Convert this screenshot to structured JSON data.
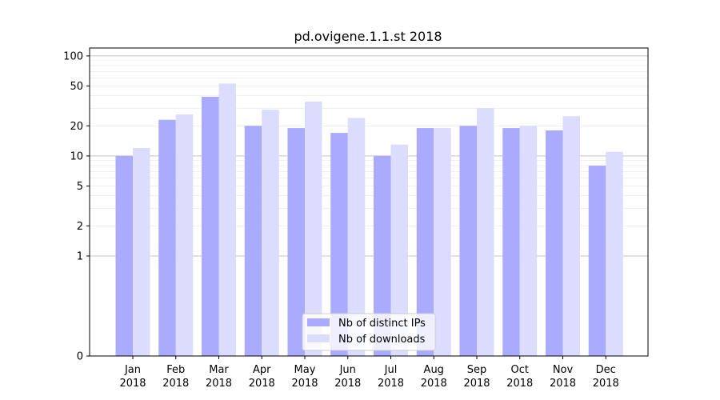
{
  "chart_data": {
    "type": "bar",
    "title": "pd.ovigene.1.1.st 2018",
    "xlabel": "",
    "ylabel": "",
    "y_scale": "symlog",
    "ylim": [
      0,
      120
    ],
    "y_ticks": [
      0,
      1,
      2,
      5,
      10,
      20,
      50,
      100
    ],
    "grid": "horizontal",
    "legend_position": "bottom-center",
    "categories": [
      {
        "month": "Jan",
        "year": "2018"
      },
      {
        "month": "Feb",
        "year": "2018"
      },
      {
        "month": "Mar",
        "year": "2018"
      },
      {
        "month": "Apr",
        "year": "2018"
      },
      {
        "month": "May",
        "year": "2018"
      },
      {
        "month": "Jun",
        "year": "2018"
      },
      {
        "month": "Jul",
        "year": "2018"
      },
      {
        "month": "Aug",
        "year": "2018"
      },
      {
        "month": "Sep",
        "year": "2018"
      },
      {
        "month": "Oct",
        "year": "2018"
      },
      {
        "month": "Nov",
        "year": "2018"
      },
      {
        "month": "Dec",
        "year": "2018"
      }
    ],
    "series": [
      {
        "name": "Nb of distinct IPs",
        "color": "#aaaaff",
        "values": [
          10,
          23,
          39,
          20,
          19,
          17,
          10,
          19,
          20,
          19,
          18,
          8
        ]
      },
      {
        "name": "Nb of downloads",
        "color": "#dcdcff",
        "values": [
          12,
          26,
          53,
          29,
          35,
          24,
          13,
          19,
          30,
          20,
          25,
          11
        ]
      }
    ]
  }
}
